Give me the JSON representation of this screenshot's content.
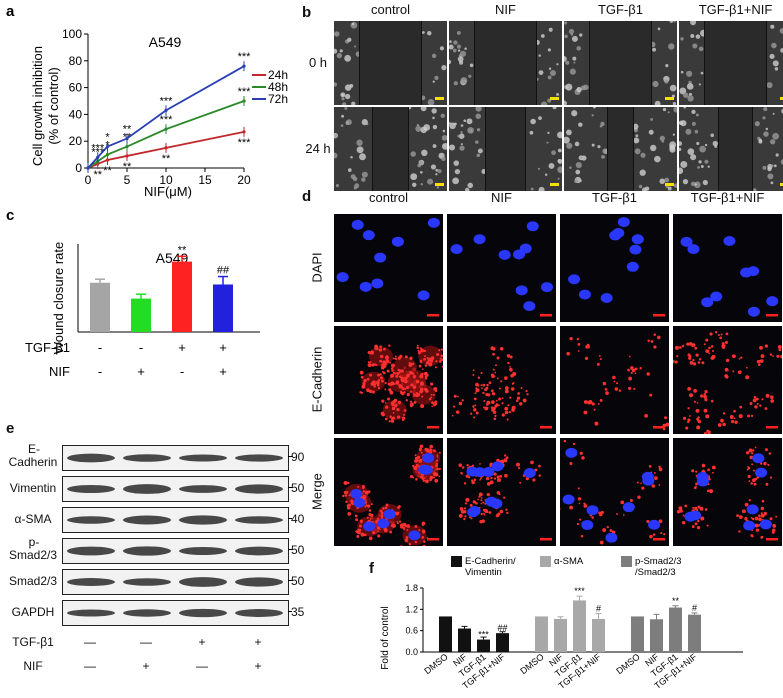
{
  "panels": {
    "a": {
      "label": "a",
      "chart_data": {
        "type": "line",
        "title": "A549",
        "xlabel": "NIF(μM)",
        "ylabel_line1": "Cell growth inhibition",
        "ylabel_line2": "(% of control)",
        "xlim": [
          0,
          20
        ],
        "ylim": [
          0,
          100
        ],
        "xticks": [
          0,
          5,
          10,
          15,
          20
        ],
        "yticks": [
          0,
          20,
          40,
          60,
          80,
          100
        ],
        "x": [
          0,
          1.25,
          2.5,
          5,
          10,
          20
        ],
        "series": [
          {
            "name": "24h",
            "color": "#c0282d",
            "values": [
              0,
              3,
              6,
              9,
              15,
              27
            ],
            "sig": [
              "",
              "**",
              "**",
              "**",
              "**",
              "***"
            ]
          },
          {
            "name": "48h",
            "color": "#2a8a2a",
            "values": [
              0,
              5,
              10,
              16,
              29,
              50
            ],
            "sig": [
              "",
              "***",
              "*",
              "**",
              "***",
              "***"
            ]
          },
          {
            "name": "72h",
            "color": "#2a3fb3",
            "values": [
              0,
              8,
              16,
              22,
              43,
              76
            ],
            "sig": [
              "",
              "***",
              "*",
              "**",
              "***",
              "***"
            ]
          }
        ]
      }
    },
    "b": {
      "label": "b",
      "columns": [
        "control",
        "NIF",
        "TGF-β1",
        "TGF-β1+NIF"
      ],
      "rows": [
        "0 h",
        "24 h"
      ]
    },
    "c": {
      "label": "c",
      "chart_data": {
        "type": "bar",
        "title": "A549",
        "ylabel": "Wound closure rate",
        "ylim": [
          0,
          0.5
        ],
        "values": [
          0.28,
          0.19,
          0.4,
          0.27
        ],
        "errors": [
          0.02,
          0.025,
          0.03,
          0.045
        ],
        "colors": [
          "#a5a5a5",
          "#22dd22",
          "#ff2222",
          "#2222dd"
        ],
        "sig": [
          "",
          "",
          "**",
          "##"
        ],
        "conditions": [
          {
            "name": "TGF-β1",
            "values": [
              "-",
              "-",
              "+",
              "+"
            ]
          },
          {
            "name": "NIF",
            "values": [
              "-",
              "+",
              "-",
              "+"
            ]
          }
        ]
      }
    },
    "d": {
      "label": "d",
      "columns": [
        "control",
        "NIF",
        "TGF-β1",
        "TGF-β1+NIF"
      ],
      "rows": [
        "DAPI",
        "E-Cadherin",
        "Merge"
      ]
    },
    "e": {
      "label": "e",
      "bands": [
        {
          "name_line1": "E-",
          "name_line2": "Cadherin",
          "kda": "90"
        },
        {
          "name_line1": "Vimentin",
          "name_line2": "",
          "kda": "50"
        },
        {
          "name_line1": "α-SMA",
          "name_line2": "",
          "kda": "40"
        },
        {
          "name_line1": "p-",
          "name_line2": "Smad2/3",
          "kda": "50"
        },
        {
          "name_line1": "Smad2/3",
          "name_line2": "",
          "kda": "50"
        },
        {
          "name_line1": "GAPDH",
          "name_line2": "",
          "kda": "35"
        }
      ],
      "conditions": [
        {
          "name": "TGF-β1",
          "values": [
            "—",
            "—",
            "+",
            "+"
          ]
        },
        {
          "name": "NIF",
          "values": [
            "—",
            "+",
            "—",
            "+"
          ]
        }
      ]
    },
    "f": {
      "label": "f",
      "chart_data": {
        "type": "bar",
        "ylabel": "Fold of control",
        "ylim": [
          0,
          1.8
        ],
        "yticks": [
          "0.0",
          "0.6",
          "1.2",
          "1.8"
        ],
        "categories": [
          "DMSO",
          "NIF",
          "TGF-β1",
          "TGF-β1+NIF"
        ],
        "groups": [
          {
            "name_line1": "E-Cadherin/",
            "name_line2": "Vimentin",
            "color": "#111111",
            "values": [
              1.0,
              0.66,
              0.35,
              0.53
            ],
            "errors": [
              0,
              0.06,
              0.07,
              0.04
            ],
            "sig": [
              "",
              "",
              "***",
              "##"
            ]
          },
          {
            "name_line1": "α-SMA",
            "name_line2": "",
            "color": "#a8a8a8",
            "values": [
              1.0,
              0.93,
              1.45,
              0.93
            ],
            "errors": [
              0,
              0.06,
              0.12,
              0.15
            ],
            "sig": [
              "",
              "",
              "***",
              "#"
            ]
          },
          {
            "name_line1": "p-Smad2/3",
            "name_line2": "/Smad2/3",
            "color": "#7d7d7d",
            "values": [
              1.0,
              0.92,
              1.25,
              1.05
            ],
            "errors": [
              0,
              0.14,
              0.05,
              0.05
            ],
            "sig": [
              "",
              "",
              "**",
              "#"
            ]
          }
        ]
      }
    }
  }
}
